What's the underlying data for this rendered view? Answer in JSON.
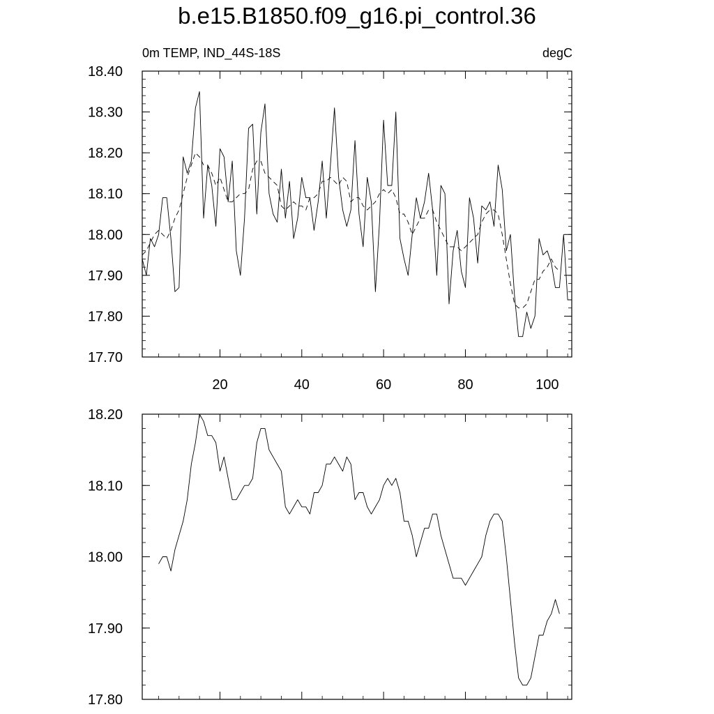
{
  "title": "b.e15.B1850.f09_g16.pi_control.36",
  "panel_top": {
    "left_label": "0m TEMP, IND_44S-18S",
    "right_label": "degC"
  },
  "chart_data": [
    {
      "type": "line",
      "title": "0m TEMP, IND_44S-18S",
      "units": "degC",
      "xlim": [
        1,
        106
      ],
      "ylim": [
        17.7,
        18.4
      ],
      "x_ticks": [
        20,
        40,
        60,
        80,
        100
      ],
      "x_tick_labels": [
        "20",
        "40",
        "60",
        "80",
        "100"
      ],
      "y_ticks": [
        17.7,
        17.8,
        17.9,
        18.0,
        18.1,
        18.2,
        18.3,
        18.4
      ],
      "y_tick_labels": [
        "17.70",
        "17.80",
        "17.90",
        "18.00",
        "18.10",
        "18.20",
        "18.30",
        "18.40"
      ],
      "grid": false,
      "series": [
        {
          "style": "solid",
          "x": [
            1,
            2,
            3,
            4,
            5,
            6,
            7,
            8,
            9,
            10,
            11,
            12,
            13,
            14,
            15,
            16,
            17,
            18,
            19,
            20,
            21,
            22,
            23,
            24,
            25,
            26,
            27,
            28,
            29,
            30,
            31,
            32,
            33,
            34,
            35,
            36,
            37,
            38,
            39,
            40,
            41,
            42,
            43,
            44,
            45,
            46,
            47,
            48,
            49,
            50,
            51,
            52,
            53,
            54,
            55,
            56,
            57,
            58,
            59,
            60,
            61,
            62,
            63,
            64,
            65,
            66,
            67,
            68,
            69,
            70,
            71,
            72,
            73,
            74,
            75,
            76,
            77,
            78,
            79,
            80,
            81,
            82,
            83,
            84,
            85,
            86,
            87,
            88,
            89,
            90,
            91,
            92,
            93,
            94,
            95,
            96,
            97,
            98,
            99,
            100,
            101,
            102,
            103,
            104,
            105,
            106
          ],
          "y": [
            17.94,
            17.9,
            17.99,
            17.97,
            18.0,
            18.09,
            18.09,
            17.99,
            17.86,
            17.87,
            18.19,
            18.15,
            18.18,
            18.31,
            18.35,
            18.04,
            18.17,
            18.12,
            18.02,
            18.21,
            18.19,
            18.08,
            18.18,
            17.96,
            17.9,
            18.04,
            18.26,
            18.27,
            18.05,
            18.25,
            18.32,
            18.1,
            18.05,
            18.03,
            18.16,
            18.04,
            18.13,
            17.99,
            18.04,
            18.14,
            18.09,
            18.09,
            18.01,
            18.08,
            18.18,
            18.04,
            18.17,
            18.31,
            18.14,
            18.06,
            18.02,
            18.06,
            18.23,
            18.05,
            17.97,
            18.14,
            18.08,
            17.86,
            18.03,
            18.28,
            18.12,
            18.12,
            18.3,
            17.99,
            17.94,
            17.9,
            18.0,
            18.09,
            18.04,
            18.08,
            18.15,
            18.06,
            17.9,
            18.12,
            18.1,
            17.83,
            17.96,
            18.01,
            17.91,
            17.87,
            18.09,
            18.04,
            17.93,
            18.07,
            18.06,
            18.08,
            18.02,
            18.17,
            18.11,
            17.96,
            18.0,
            17.85,
            17.75,
            17.75,
            17.81,
            17.77,
            17.8,
            17.99,
            17.95,
            17.96,
            17.93,
            17.87,
            17.87,
            18.0,
            17.84,
            17.84
          ]
        },
        {
          "style": "dashed",
          "x": [
            1,
            2,
            3,
            4,
            5,
            6,
            7,
            8,
            9,
            10,
            11,
            12,
            13,
            14,
            15,
            16,
            17,
            18,
            19,
            20,
            21,
            22,
            23,
            24,
            25,
            26,
            27,
            28,
            29,
            30,
            31,
            32,
            33,
            34,
            35,
            36,
            37,
            38,
            39,
            40,
            41,
            42,
            43,
            44,
            45,
            46,
            47,
            48,
            49,
            50,
            51,
            52,
            53,
            54,
            55,
            56,
            57,
            58,
            59,
            60,
            61,
            62,
            63,
            64,
            65,
            66,
            67,
            68,
            69,
            70,
            71,
            72,
            73,
            74,
            75,
            76,
            77,
            78,
            79,
            80,
            81,
            82,
            83,
            84,
            85,
            86,
            87,
            88,
            89,
            90,
            91,
            92,
            93,
            94,
            95,
            96,
            97,
            98,
            99,
            100,
            101,
            102,
            103
          ],
          "y": [
            17.95,
            17.96,
            17.98,
            18.0,
            18.01,
            18.0,
            17.99,
            18.01,
            18.04,
            18.06,
            18.1,
            18.14,
            18.17,
            18.2,
            18.19,
            18.17,
            18.17,
            18.15,
            18.12,
            18.14,
            18.11,
            18.08,
            18.08,
            18.09,
            18.1,
            18.1,
            18.11,
            18.16,
            18.18,
            18.18,
            18.15,
            18.14,
            18.13,
            18.12,
            18.07,
            18.06,
            18.07,
            18.08,
            18.07,
            18.07,
            18.06,
            18.09,
            18.09,
            18.1,
            18.13,
            18.13,
            18.14,
            18.13,
            18.12,
            18.14,
            18.13,
            18.08,
            18.09,
            18.09,
            18.07,
            18.06,
            18.07,
            18.08,
            18.1,
            18.11,
            18.1,
            18.11,
            18.09,
            18.05,
            18.05,
            18.03,
            18.0,
            18.02,
            18.04,
            18.04,
            18.06,
            18.06,
            18.03,
            18.01,
            17.99,
            17.97,
            17.97,
            17.97,
            17.96,
            17.97,
            17.98,
            17.99,
            18.0,
            18.03,
            18.05,
            18.06,
            18.06,
            18.05,
            18.0,
            17.94,
            17.88,
            17.83,
            17.82,
            17.82,
            17.83,
            17.86,
            17.89,
            17.89,
            17.91,
            17.92,
            17.94,
            17.92,
            17.91
          ]
        }
      ]
    },
    {
      "type": "line",
      "xlim": [
        1,
        106
      ],
      "ylim": [
        17.8,
        18.2
      ],
      "x_ticks": [
        20,
        40,
        60,
        80,
        100
      ],
      "y_ticks": [
        17.8,
        17.9,
        18.0,
        18.1,
        18.2
      ],
      "y_tick_labels": [
        "17.80",
        "17.90",
        "18.00",
        "18.10",
        "18.20"
      ],
      "grid": false,
      "series": [
        {
          "style": "solid",
          "x": [
            5,
            6,
            7,
            8,
            9,
            10,
            11,
            12,
            13,
            14,
            15,
            16,
            17,
            18,
            19,
            20,
            21,
            22,
            23,
            24,
            25,
            26,
            27,
            28,
            29,
            30,
            31,
            32,
            33,
            34,
            35,
            36,
            37,
            38,
            39,
            40,
            41,
            42,
            43,
            44,
            45,
            46,
            47,
            48,
            49,
            50,
            51,
            52,
            53,
            54,
            55,
            56,
            57,
            58,
            59,
            60,
            61,
            62,
            63,
            64,
            65,
            66,
            67,
            68,
            69,
            70,
            71,
            72,
            73,
            74,
            75,
            76,
            77,
            78,
            79,
            80,
            81,
            82,
            83,
            84,
            85,
            86,
            87,
            88,
            89,
            90,
            91,
            92,
            93,
            94,
            95,
            96,
            97,
            98,
            99,
            100,
            101,
            102,
            103
          ],
          "y": [
            17.99,
            18.0,
            18.0,
            17.98,
            18.01,
            18.03,
            18.05,
            18.08,
            18.13,
            18.16,
            18.2,
            18.19,
            18.17,
            18.17,
            18.16,
            18.12,
            18.14,
            18.11,
            18.08,
            18.08,
            18.09,
            18.1,
            18.1,
            18.11,
            18.16,
            18.18,
            18.18,
            18.15,
            18.14,
            18.13,
            18.12,
            18.07,
            18.06,
            18.07,
            18.08,
            18.07,
            18.07,
            18.06,
            18.09,
            18.09,
            18.1,
            18.13,
            18.13,
            18.14,
            18.13,
            18.12,
            18.14,
            18.13,
            18.08,
            18.09,
            18.09,
            18.07,
            18.06,
            18.07,
            18.08,
            18.1,
            18.11,
            18.1,
            18.11,
            18.09,
            18.05,
            18.05,
            18.03,
            18.0,
            18.02,
            18.04,
            18.04,
            18.06,
            18.06,
            18.03,
            18.01,
            17.99,
            17.97,
            17.97,
            17.97,
            17.96,
            17.97,
            17.98,
            17.99,
            18.0,
            18.03,
            18.05,
            18.06,
            18.06,
            18.05,
            18.0,
            17.94,
            17.88,
            17.83,
            17.82,
            17.82,
            17.83,
            17.86,
            17.89,
            17.89,
            17.91,
            17.92,
            17.94,
            17.92
          ]
        }
      ]
    }
  ]
}
